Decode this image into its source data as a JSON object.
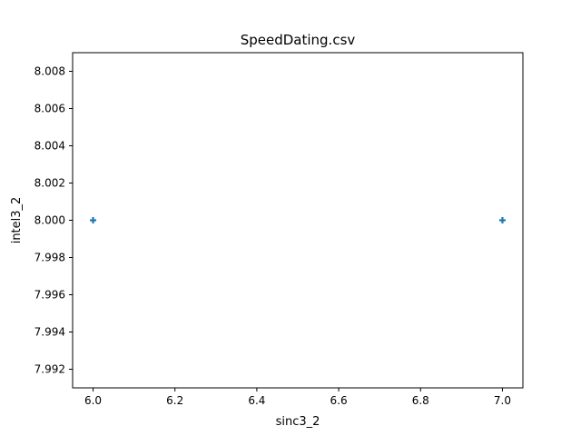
{
  "chart_data": {
    "type": "scatter",
    "title": "SpeedDating.csv",
    "xlabel": "sinc3_2",
    "ylabel": "intel3_2",
    "xlim": [
      5.95,
      7.05
    ],
    "ylim": [
      7.991,
      8.009
    ],
    "xticks": [
      "6.0",
      "6.2",
      "6.4",
      "6.6",
      "6.8",
      "7.0"
    ],
    "yticks": [
      "7.992",
      "7.994",
      "7.996",
      "7.998",
      "8.000",
      "8.002",
      "8.004",
      "8.006",
      "8.008"
    ],
    "grid": false,
    "marker": "plus",
    "series": [
      {
        "color": "#1f77b4",
        "points": [
          {
            "x": 6.0,
            "y": 8.0
          },
          {
            "x": 7.0,
            "y": 8.0
          }
        ]
      }
    ]
  }
}
